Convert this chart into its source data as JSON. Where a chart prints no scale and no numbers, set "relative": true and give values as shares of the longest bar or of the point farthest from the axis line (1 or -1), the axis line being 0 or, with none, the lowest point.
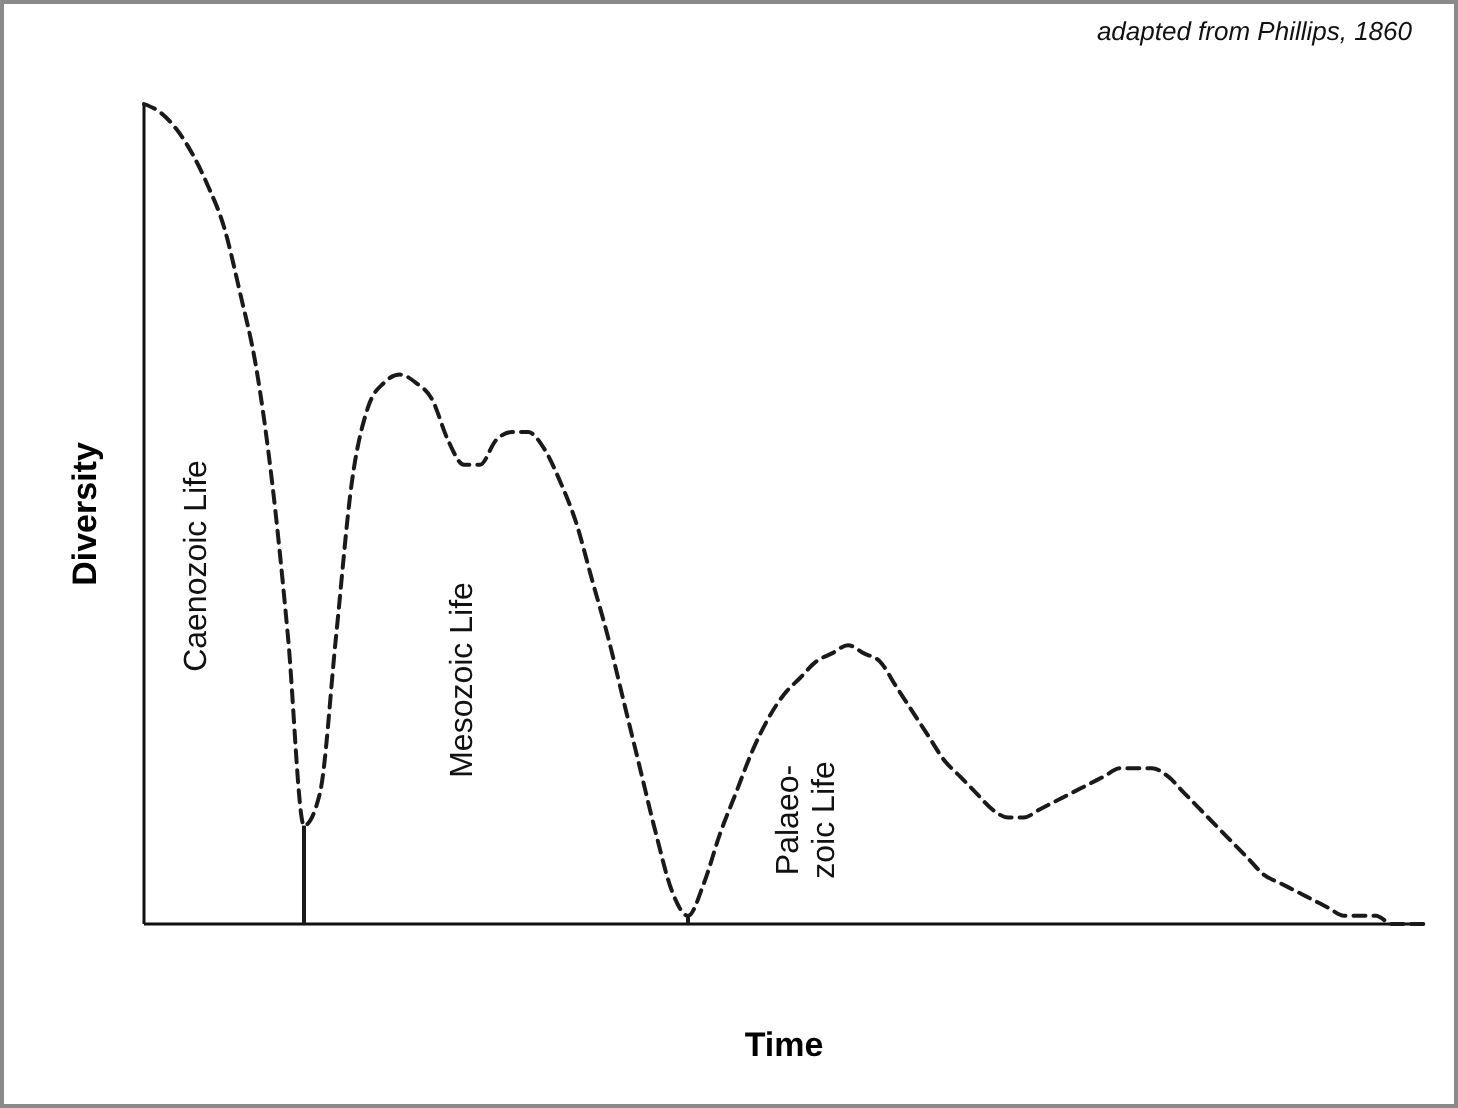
{
  "chart_data": {
    "type": "line",
    "relative": true,
    "xlabel": "Time",
    "ylabel": "Diversity",
    "line_style": "dashed",
    "categories": [
      null,
      null,
      null,
      null,
      null,
      null,
      null,
      null,
      null,
      null,
      null,
      null,
      null,
      null,
      null,
      null,
      null,
      null,
      null,
      null,
      null,
      null,
      null,
      null,
      null,
      null,
      null,
      null,
      null,
      null,
      null,
      null,
      null,
      null,
      null,
      null,
      null,
      null,
      null,
      null,
      null,
      null,
      null,
      null,
      null,
      null,
      null,
      null,
      null,
      null,
      null,
      null,
      null,
      null,
      null,
      null,
      null,
      null,
      null,
      null,
      null,
      null,
      null,
      null,
      null,
      null,
      null,
      null,
      null,
      null,
      null,
      null,
      null,
      null,
      null,
      null,
      null,
      null,
      null,
      null,
      null
    ],
    "series": [
      {
        "color": "#1a1a1a",
        "values": [
          1.0,
          0.99,
          0.97,
          0.94,
          0.9,
          0.85,
          0.77,
          0.68,
          0.54,
          0.35,
          0.12,
          0.16,
          0.35,
          0.54,
          0.63,
          0.66,
          0.67,
          0.66,
          0.64,
          0.59,
          0.56,
          0.56,
          0.59,
          0.6,
          0.6,
          0.58,
          0.54,
          0.49,
          0.42,
          0.35,
          0.27,
          0.19,
          0.11,
          0.04,
          0.01,
          0.05,
          0.11,
          0.16,
          0.21,
          0.25,
          0.28,
          0.3,
          0.32,
          0.33,
          0.34,
          0.33,
          0.32,
          0.29,
          0.26,
          0.23,
          0.2,
          0.18,
          0.16,
          0.14,
          0.13,
          0.13,
          0.14,
          0.15,
          0.16,
          0.17,
          0.18,
          0.19,
          0.19,
          0.19,
          0.18,
          0.16,
          0.14,
          0.12,
          0.1,
          0.08,
          0.06,
          0.05,
          0.04,
          0.03,
          0.02,
          0.01,
          0.01,
          0.01,
          0.0,
          0.0,
          0.0
        ]
      }
    ],
    "annotations": [
      "adapted from Phillips, 1860",
      "Caenozoic Life",
      "Mesozoic Life",
      "Palaeo-\nzoic Life"
    ]
  }
}
